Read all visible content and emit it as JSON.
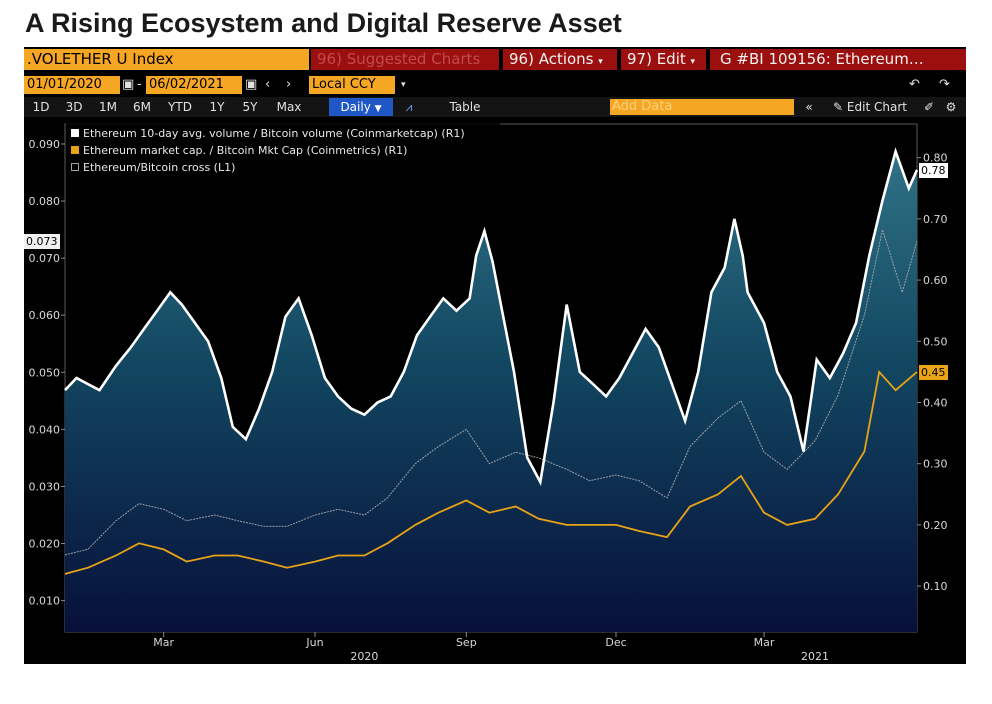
{
  "page_title": "A Rising Ecosystem and Digital Reserve Asset",
  "toolbar": {
    "ticker": ".VOLETHER U Index",
    "suggested": "96) Suggested Charts",
    "actions": "96) Actions",
    "edit": "97) Edit",
    "security": "G #BI 109156: Ethereum…",
    "start_date": "01/01/2020",
    "end_date": "06/02/2021",
    "currency": "Local CCY",
    "ranges": [
      "1D",
      "3D",
      "1M",
      "6M",
      "YTD",
      "1Y",
      "5Y",
      "Max"
    ],
    "frequency": "Daily",
    "table": "Table",
    "add_data": "Add Data",
    "edit_chart": "Edit Chart"
  },
  "colors": {
    "volume_line": "#ffffff",
    "market_cap_line": "#e8a317",
    "cross_line": "#9aa0a6",
    "area_top": "#2f7286",
    "area_bottom": "#07103a",
    "terminal_bg": "#000000",
    "menu_red": "#9c0f0f",
    "box_orange": "#f5a623"
  },
  "icons": [
    "calendar-icon",
    "arrow-left-icon",
    "arrow-right-icon",
    "line-chart-icon",
    "undo-icon",
    "redo-icon",
    "pencil-icon",
    "gear-icon",
    "double-chevron-left-icon"
  ],
  "chart_data": {
    "type": "line",
    "legend_position": "top-left",
    "grid": false,
    "left_axis": {
      "ticks": [
        0.01,
        0.02,
        0.03,
        0.04,
        0.05,
        0.06,
        0.07,
        0.08,
        0.09
      ],
      "tick_labels": [
        "0.010",
        "0.020",
        "0.030",
        "0.040",
        "0.050",
        "0.060",
        "0.070",
        "0.080",
        "0.090"
      ],
      "range": [
        0.0045,
        0.0935
      ],
      "last_value_flag": "0.073"
    },
    "right_axis": {
      "ticks": [
        0.1,
        0.2,
        0.3,
        0.4,
        0.5,
        0.6,
        0.7,
        0.8
      ],
      "tick_labels": [
        "0.10",
        "0.20",
        "0.30",
        "0.40",
        "0.50",
        "0.60",
        "0.70",
        "0.80"
      ],
      "range": [
        0.025,
        0.855
      ],
      "last_value_flags": [
        "0.78",
        "0.45"
      ]
    },
    "x_axis": {
      "range": [
        "2020-01-01",
        "2021-06-02"
      ],
      "month_ticks": [
        "2020-03-01",
        "2020-06-01",
        "2020-09-01",
        "2020-12-01",
        "2021-03-01"
      ],
      "month_labels": [
        "Mar",
        "Jun",
        "Sep",
        "Dec",
        "Mar"
      ],
      "year_ticks": [
        "2020-07-01",
        "2021-04-01"
      ],
      "year_labels": [
        "2020",
        "2021"
      ]
    },
    "series": [
      {
        "name": "Ethereum 10-day avg. volume / Bitcoin volume (Coinmarketcap) (R1)",
        "axis": "right",
        "x": [
          "2020-01-01",
          "2020-01-08",
          "2020-01-15",
          "2020-01-22",
          "2020-02-01",
          "2020-02-10",
          "2020-02-18",
          "2020-02-26",
          "2020-03-05",
          "2020-03-12",
          "2020-03-20",
          "2020-03-28",
          "2020-04-05",
          "2020-04-12",
          "2020-04-20",
          "2020-04-28",
          "2020-05-06",
          "2020-05-14",
          "2020-05-22",
          "2020-05-30",
          "2020-06-07",
          "2020-06-15",
          "2020-06-23",
          "2020-07-01",
          "2020-07-09",
          "2020-07-17",
          "2020-07-25",
          "2020-08-02",
          "2020-08-10",
          "2020-08-18",
          "2020-08-26",
          "2020-09-03",
          "2020-09-07",
          "2020-09-12",
          "2020-09-17",
          "2020-09-22",
          "2020-09-30",
          "2020-10-08",
          "2020-10-16",
          "2020-10-24",
          "2020-11-01",
          "2020-11-09",
          "2020-11-17",
          "2020-11-25",
          "2020-12-03",
          "2020-12-11",
          "2020-12-19",
          "2020-12-27",
          "2021-01-04",
          "2021-01-12",
          "2021-01-20",
          "2021-01-28",
          "2021-02-05",
          "2021-02-11",
          "2021-02-16",
          "2021-02-19",
          "2021-02-23",
          "2021-03-01",
          "2021-03-09",
          "2021-03-17",
          "2021-03-25",
          "2021-04-02",
          "2021-04-10",
          "2021-04-18",
          "2021-04-26",
          "2021-05-04",
          "2021-05-12",
          "2021-05-20",
          "2021-05-28",
          "2021-06-02"
        ],
        "values": [
          0.42,
          0.44,
          0.43,
          0.42,
          0.46,
          0.49,
          0.52,
          0.55,
          0.58,
          0.56,
          0.53,
          0.5,
          0.44,
          0.36,
          0.34,
          0.39,
          0.45,
          0.54,
          0.57,
          0.51,
          0.44,
          0.41,
          0.39,
          0.38,
          0.4,
          0.41,
          0.45,
          0.51,
          0.54,
          0.57,
          0.55,
          0.57,
          0.64,
          0.68,
          0.63,
          0.56,
          0.45,
          0.31,
          0.27,
          0.4,
          0.56,
          0.45,
          0.43,
          0.41,
          0.44,
          0.48,
          0.52,
          0.49,
          0.43,
          0.37,
          0.45,
          0.58,
          0.62,
          0.7,
          0.64,
          0.58,
          0.56,
          0.53,
          0.45,
          0.41,
          0.32,
          0.47,
          0.44,
          0.48,
          0.53,
          0.64,
          0.73,
          0.81,
          0.75,
          0.78
        ]
      },
      {
        "name": "Ethereum market cap. / Bitcoin Mkt Cap (Coinmetrics) (R1)",
        "axis": "right",
        "x": [
          "2020-01-01",
          "2020-01-15",
          "2020-02-01",
          "2020-02-15",
          "2020-03-01",
          "2020-03-15",
          "2020-04-01",
          "2020-04-15",
          "2020-05-01",
          "2020-05-15",
          "2020-06-01",
          "2020-06-15",
          "2020-07-01",
          "2020-07-15",
          "2020-08-01",
          "2020-08-15",
          "2020-09-01",
          "2020-09-15",
          "2020-10-01",
          "2020-10-15",
          "2020-11-01",
          "2020-11-15",
          "2020-12-01",
          "2020-12-15",
          "2021-01-01",
          "2021-01-15",
          "2021-02-01",
          "2021-02-15",
          "2021-03-01",
          "2021-03-15",
          "2021-04-01",
          "2021-04-15",
          "2021-05-01",
          "2021-05-10",
          "2021-05-20",
          "2021-06-02"
        ],
        "values": [
          0.12,
          0.13,
          0.15,
          0.17,
          0.16,
          0.14,
          0.15,
          0.15,
          0.14,
          0.13,
          0.14,
          0.15,
          0.15,
          0.17,
          0.2,
          0.22,
          0.24,
          0.22,
          0.23,
          0.21,
          0.2,
          0.2,
          0.2,
          0.19,
          0.18,
          0.23,
          0.25,
          0.28,
          0.22,
          0.2,
          0.21,
          0.25,
          0.32,
          0.45,
          0.42,
          0.45
        ]
      },
      {
        "name": "Ethereum/Bitcoin cross (L1)",
        "axis": "left",
        "x": [
          "2020-01-01",
          "2020-01-15",
          "2020-02-01",
          "2020-02-15",
          "2020-03-01",
          "2020-03-15",
          "2020-04-01",
          "2020-04-15",
          "2020-05-01",
          "2020-05-15",
          "2020-06-01",
          "2020-06-15",
          "2020-07-01",
          "2020-07-15",
          "2020-08-01",
          "2020-08-15",
          "2020-09-01",
          "2020-09-15",
          "2020-10-01",
          "2020-10-15",
          "2020-11-01",
          "2020-11-15",
          "2020-12-01",
          "2020-12-15",
          "2021-01-01",
          "2021-01-15",
          "2021-02-01",
          "2021-02-15",
          "2021-03-01",
          "2021-03-15",
          "2021-04-01",
          "2021-04-15",
          "2021-05-01",
          "2021-05-12",
          "2021-05-24",
          "2021-06-02"
        ],
        "values": [
          0.018,
          0.019,
          0.024,
          0.027,
          0.026,
          0.024,
          0.025,
          0.024,
          0.023,
          0.023,
          0.025,
          0.026,
          0.025,
          0.028,
          0.034,
          0.037,
          0.04,
          0.034,
          0.036,
          0.035,
          0.033,
          0.031,
          0.032,
          0.031,
          0.028,
          0.037,
          0.042,
          0.045,
          0.036,
          0.033,
          0.038,
          0.046,
          0.06,
          0.075,
          0.064,
          0.073
        ]
      }
    ]
  }
}
